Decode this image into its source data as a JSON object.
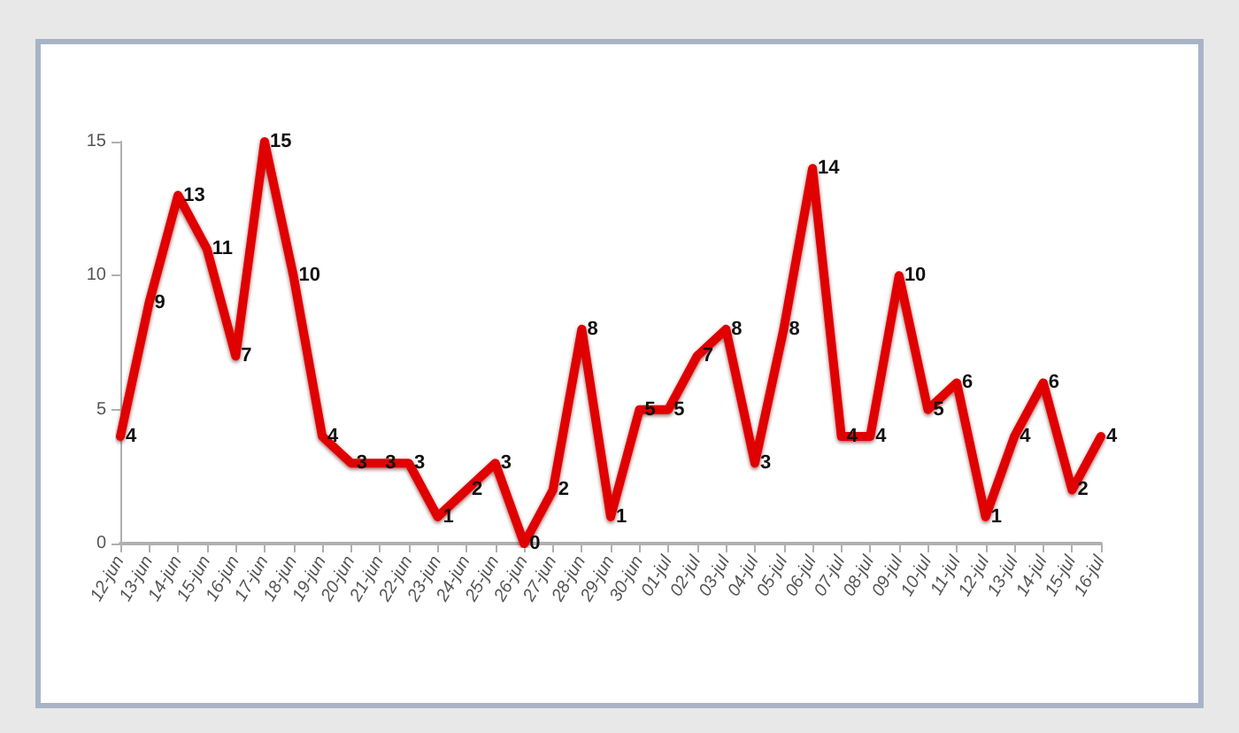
{
  "chart_data": {
    "type": "line",
    "categories": [
      "12-jun",
      "13-jun",
      "14-jun",
      "15-jun",
      "16-jun",
      "17-jun",
      "18-jun",
      "19-jun",
      "20-jun",
      "21-jun",
      "22-jun",
      "23-jun",
      "24-jun",
      "25-jun",
      "26-jun",
      "27-jun",
      "28-jun",
      "29-jun",
      "30-jun",
      "01-jul",
      "02-jul",
      "03-jul",
      "04-jul",
      "05-jul",
      "06-jul",
      "07-jul",
      "08-jul",
      "09-jul",
      "10-jul",
      "11-jul",
      "12-jul",
      "13-jul",
      "14-jul",
      "15-jul",
      "16-jul"
    ],
    "values": [
      4,
      9,
      13,
      11,
      7,
      15,
      10,
      4,
      3,
      3,
      3,
      1,
      2,
      3,
      0,
      2,
      8,
      1,
      5,
      5,
      7,
      8,
      3,
      8,
      14,
      4,
      4,
      10,
      5,
      6,
      1,
      4,
      6,
      2,
      4
    ],
    "color": "#e00000",
    "ylim": [
      0,
      15
    ],
    "yticks": [
      0,
      5,
      10,
      15
    ],
    "data_labels": true
  }
}
